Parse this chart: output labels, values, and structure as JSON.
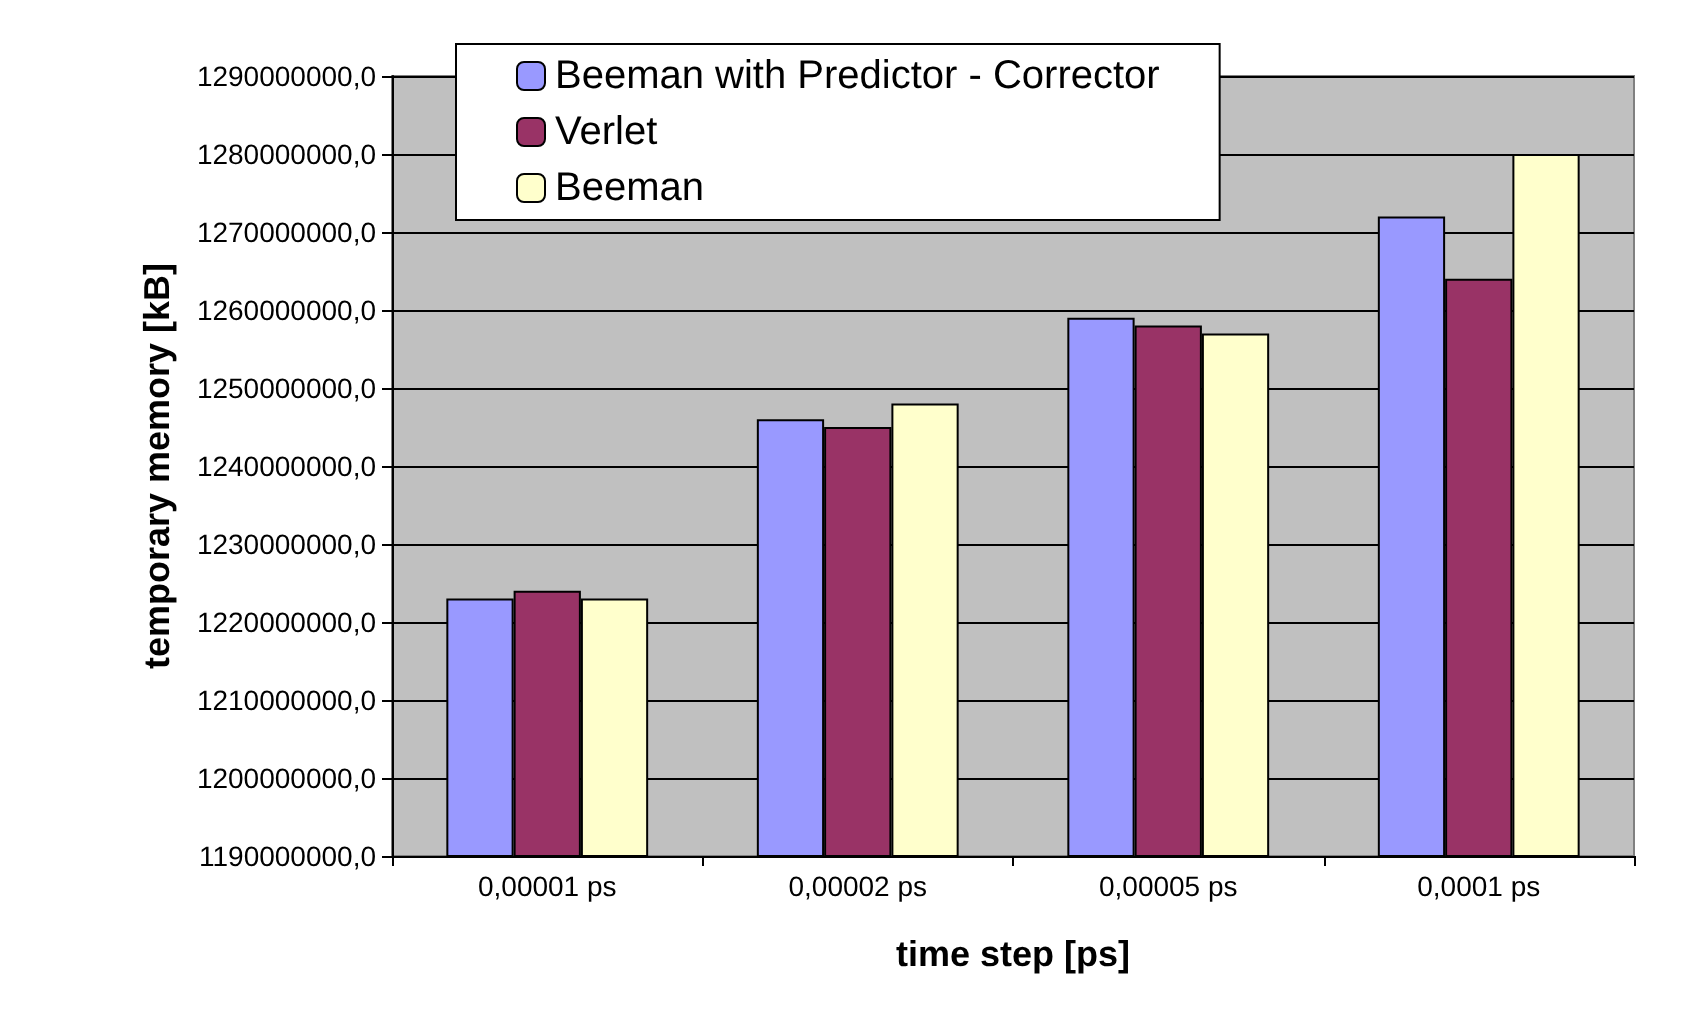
{
  "chart_data": {
    "type": "bar",
    "xlabel": "time step [ps]",
    "ylabel": "temporary memory [kB]",
    "categories": [
      "0,00001 ps",
      "0,00002 ps",
      "0,00005 ps",
      "0,0001 ps"
    ],
    "series": [
      {
        "name": "Beeman with Predictor - Corrector",
        "color": "#9999ff",
        "values": [
          1223000000,
          1246000000,
          1259000000,
          1272000000
        ]
      },
      {
        "name": "Verlet",
        "color": "#993366",
        "values": [
          1224000000,
          1245000000,
          1258000000,
          1264000000
        ]
      },
      {
        "name": "Beeman",
        "color": "#ffffcc",
        "values": [
          1223000000,
          1248000000,
          1257000000,
          1280000000
        ]
      }
    ],
    "ylim": [
      1190000000,
      1290000000
    ],
    "yticks": [
      {
        "value": 1190000000,
        "label": "1190000000,0"
      },
      {
        "value": 1200000000,
        "label": "1200000000,0"
      },
      {
        "value": 1210000000,
        "label": "1210000000,0"
      },
      {
        "value": 1220000000,
        "label": "1220000000,0"
      },
      {
        "value": 1230000000,
        "label": "1230000000,0"
      },
      {
        "value": 1240000000,
        "label": "1240000000,0"
      },
      {
        "value": 1250000000,
        "label": "1250000000,0"
      },
      {
        "value": 1260000000,
        "label": "1260000000,0"
      },
      {
        "value": 1270000000,
        "label": "1270000000,0"
      },
      {
        "value": 1280000000,
        "label": "1280000000,0"
      },
      {
        "value": 1290000000,
        "label": "1290000000,0"
      }
    ],
    "grid": "y",
    "legend": "top"
  }
}
